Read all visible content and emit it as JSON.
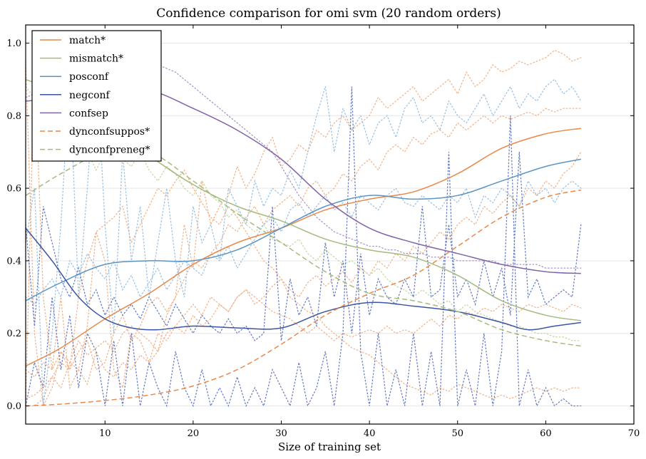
{
  "chart_data": {
    "type": "line",
    "title": "Confidence comparison for omi svm (20 random orders)",
    "xlabel": "Size of training set",
    "ylabel": "",
    "xlim": [
      1,
      70
    ],
    "ylim": [
      -0.05,
      1.05
    ],
    "xticks": [
      10,
      20,
      30,
      40,
      50,
      60,
      70
    ],
    "yticks": [
      0.0,
      0.2,
      0.4,
      0.6,
      0.8,
      1.0
    ],
    "grid": "horizontal",
    "legend_position": "top-left",
    "series": [
      {
        "name": "match*",
        "color": "#e8894a",
        "style": "solid",
        "x": [
          1,
          5,
          10,
          15,
          20,
          25,
          30,
          35,
          40,
          45,
          50,
          55,
          60,
          64
        ],
        "values": [
          0.11,
          0.16,
          0.24,
          0.31,
          0.39,
          0.45,
          0.49,
          0.54,
          0.57,
          0.59,
          0.64,
          0.71,
          0.75,
          0.765
        ]
      },
      {
        "name": "mismatch*",
        "color": "#a5bb7e",
        "style": "solid",
        "x": [
          1,
          5,
          10,
          15,
          20,
          25,
          30,
          35,
          40,
          45,
          50,
          55,
          60,
          64
        ],
        "values": [
          0.9,
          0.86,
          0.78,
          0.69,
          0.61,
          0.55,
          0.51,
          0.46,
          0.43,
          0.41,
          0.36,
          0.29,
          0.25,
          0.235
        ]
      },
      {
        "name": "posconf",
        "color": "#5b95c4",
        "style": "solid",
        "x": [
          1,
          5,
          10,
          15,
          20,
          25,
          30,
          35,
          40,
          45,
          50,
          55,
          60,
          64
        ],
        "values": [
          0.29,
          0.34,
          0.39,
          0.4,
          0.4,
          0.43,
          0.49,
          0.55,
          0.58,
          0.57,
          0.58,
          0.62,
          0.66,
          0.68
        ]
      },
      {
        "name": "negconf",
        "color": "#3b55a2",
        "style": "solid",
        "x": [
          1,
          4,
          7,
          10,
          13,
          16,
          20,
          25,
          30,
          35,
          40,
          45,
          50,
          55,
          58,
          61,
          64
        ],
        "values": [
          0.49,
          0.4,
          0.3,
          0.24,
          0.215,
          0.21,
          0.22,
          0.215,
          0.215,
          0.26,
          0.285,
          0.275,
          0.26,
          0.23,
          0.21,
          0.22,
          0.23
        ]
      },
      {
        "name": "confsep",
        "color": "#8064a8",
        "style": "solid",
        "x": [
          1,
          5,
          10,
          15,
          20,
          25,
          30,
          35,
          40,
          45,
          50,
          55,
          60,
          64
        ],
        "values": [
          0.84,
          0.85,
          0.87,
          0.87,
          0.82,
          0.76,
          0.68,
          0.57,
          0.49,
          0.45,
          0.42,
          0.39,
          0.37,
          0.365
        ]
      },
      {
        "name": "dynconfsuppos*",
        "color": "#e8894a",
        "style": "dashed",
        "x": [
          1,
          5,
          10,
          15,
          20,
          25,
          30,
          35,
          40,
          45,
          50,
          55,
          60,
          64
        ],
        "values": [
          0.0,
          0.005,
          0.015,
          0.03,
          0.055,
          0.1,
          0.17,
          0.25,
          0.31,
          0.36,
          0.44,
          0.52,
          0.575,
          0.595
        ]
      },
      {
        "name": "dynconfpreneg*",
        "color": "#a5bb7e",
        "style": "dashed",
        "x": [
          1,
          5,
          10,
          15,
          20,
          25,
          30,
          35,
          40,
          45,
          50,
          55,
          60,
          64
        ],
        "values": [
          0.58,
          0.64,
          0.7,
          0.7,
          0.62,
          0.53,
          0.45,
          0.37,
          0.31,
          0.29,
          0.26,
          0.21,
          0.18,
          0.165
        ]
      }
    ],
    "background_runs": [
      {
        "color": "#f0b58e",
        "values": [
          0.0,
          0.95,
          0.3,
          0.1,
          0.3,
          0.05,
          0.1,
          0.22,
          0.48,
          0.4,
          0.1,
          0.05,
          0.2,
          0.18,
          0.12,
          0.15,
          0.25,
          0.3,
          0.5,
          0.38,
          0.62,
          0.5,
          0.55,
          0.58,
          0.66,
          0.6,
          0.64,
          0.7,
          0.74,
          0.66,
          0.68,
          0.72,
          0.7,
          0.76,
          0.74,
          0.78,
          0.8,
          0.76,
          0.78,
          0.8,
          0.85,
          0.82,
          0.84,
          0.86,
          0.88,
          0.84,
          0.86,
          0.88,
          0.9,
          0.86,
          0.92,
          0.88,
          0.9,
          0.94,
          0.92,
          0.93,
          0.95,
          0.94,
          0.95,
          0.96,
          0.98,
          0.97,
          0.95,
          0.96
        ]
      },
      {
        "color": "#f0b58e",
        "values": [
          0.02,
          0.03,
          0.05,
          0.08,
          0.12,
          0.1,
          0.15,
          0.18,
          0.1,
          0.12,
          0.2,
          0.25,
          0.18,
          0.22,
          0.28,
          0.3,
          0.26,
          0.3,
          0.35,
          0.4,
          0.38,
          0.42,
          0.45,
          0.5,
          0.48,
          0.52,
          0.55,
          0.5,
          0.54,
          0.56,
          0.58,
          0.55,
          0.6,
          0.62,
          0.58,
          0.6,
          0.64,
          0.62,
          0.66,
          0.68,
          0.65,
          0.7,
          0.72,
          0.7,
          0.74,
          0.72,
          0.75,
          0.76,
          0.74,
          0.78,
          0.76,
          0.78,
          0.8,
          0.78,
          0.8,
          0.79,
          0.8,
          0.81,
          0.8,
          0.82,
          0.81,
          0.82,
          0.82,
          0.82
        ]
      },
      {
        "color": "#f0b58e",
        "values": [
          0.0,
          0.0,
          0.02,
          0.08,
          0.05,
          0.12,
          0.1,
          0.06,
          0.15,
          0.1,
          0.08,
          0.12,
          0.1,
          0.14,
          0.12,
          0.2,
          0.18,
          0.22,
          0.2,
          0.25,
          0.22,
          0.24,
          0.28,
          0.26,
          0.3,
          0.32,
          0.28,
          0.3,
          0.33,
          0.35,
          0.32,
          0.3,
          0.34,
          0.36,
          0.33,
          0.35,
          0.37,
          0.34,
          0.38,
          0.36,
          0.4,
          0.38,
          0.42,
          0.4,
          0.44,
          0.42,
          0.45,
          0.48,
          0.46,
          0.5,
          0.52,
          0.5,
          0.55,
          0.53,
          0.56,
          0.58,
          0.55,
          0.6,
          0.58,
          0.62,
          0.6,
          0.64,
          0.66,
          0.7
        ]
      },
      {
        "color": "#f0b58e",
        "values": [
          0.95,
          0.2,
          0.0,
          0.05,
          0.15,
          0.1,
          0.3,
          0.4,
          0.48,
          0.5,
          0.52,
          0.55,
          0.45,
          0.5,
          0.55,
          0.6,
          0.58,
          0.62,
          0.65,
          0.6,
          0.56,
          0.52,
          0.5,
          0.55,
          0.52,
          0.48,
          0.44,
          0.4,
          0.38,
          0.35,
          0.3,
          0.28,
          0.26,
          0.25,
          0.22,
          0.2,
          0.18,
          0.16,
          0.15,
          0.14,
          0.12,
          0.1,
          0.08,
          0.06,
          0.05,
          0.04,
          0.03,
          0.05,
          0.04,
          0.06,
          0.05,
          0.04,
          0.03,
          0.02,
          0.03,
          0.02,
          0.03,
          0.04,
          0.05,
          0.04,
          0.05,
          0.04,
          0.05,
          0.05
        ]
      },
      {
        "color": "#f0b58e",
        "values": [
          0.1,
          0.08,
          0.12,
          0.1,
          0.15,
          0.12,
          0.18,
          0.14,
          0.16,
          0.18,
          0.15,
          0.2,
          0.22,
          0.2,
          0.18,
          0.15,
          0.2,
          0.22,
          0.25,
          0.28,
          0.25,
          0.3,
          0.28,
          0.26,
          0.3,
          0.32,
          0.3,
          0.28,
          0.26,
          0.25,
          0.24,
          0.22,
          0.2,
          0.22,
          0.2,
          0.18,
          0.2,
          0.19,
          0.2,
          0.21,
          0.2,
          0.22,
          0.2,
          0.21,
          0.2,
          0.22,
          0.24,
          0.22,
          0.25,
          0.24,
          0.26,
          0.25,
          0.27,
          0.26,
          0.28,
          0.27,
          0.26,
          0.28,
          0.27,
          0.28,
          0.27,
          0.26,
          0.28,
          0.27
        ]
      },
      {
        "color": "#c8d8a4",
        "values": [
          0.88,
          0.85,
          0.8,
          0.82,
          0.78,
          0.75,
          0.8,
          0.7,
          0.65,
          0.7,
          0.72,
          0.68,
          0.66,
          0.7,
          0.65,
          0.62,
          0.66,
          0.64,
          0.6,
          0.58,
          0.62,
          0.58,
          0.56,
          0.52,
          0.54,
          0.5,
          0.48,
          0.5,
          0.46,
          0.45,
          0.44,
          0.46,
          0.42,
          0.4,
          0.43,
          0.41,
          0.39,
          0.4,
          0.38,
          0.36,
          0.38,
          0.35,
          0.33,
          0.32,
          0.3,
          0.32,
          0.3,
          0.28,
          0.29,
          0.26,
          0.28,
          0.26,
          0.25,
          0.24,
          0.23,
          0.22,
          0.22,
          0.21,
          0.2,
          0.2,
          0.19,
          0.19,
          0.18,
          0.18
        ]
      },
      {
        "color": "#9fc2e2",
        "values": [
          0.45,
          0.6,
          0.0,
          0.2,
          0.5,
          0.9,
          0.3,
          0.6,
          0.95,
          0.5,
          0.2,
          0.7,
          0.4,
          0.55,
          0.3,
          0.45,
          0.6,
          0.4,
          0.3,
          0.55,
          0.45,
          0.5,
          0.4,
          0.6,
          0.55,
          0.5,
          0.62,
          0.55,
          0.6,
          0.58,
          0.65,
          0.6,
          0.7,
          0.8,
          0.88,
          0.7,
          0.82,
          0.76,
          0.8,
          0.72,
          0.78,
          0.8,
          0.74,
          0.82,
          0.85,
          0.78,
          0.8,
          0.76,
          0.84,
          0.8,
          0.78,
          0.82,
          0.86,
          0.8,
          0.84,
          0.88,
          0.82,
          0.86,
          0.84,
          0.88,
          0.9,
          0.86,
          0.88,
          0.84
        ]
      },
      {
        "color": "#9fc2e2",
        "values": [
          0.3,
          0.28,
          0.32,
          0.35,
          0.3,
          0.4,
          0.36,
          0.42,
          0.38,
          0.35,
          0.4,
          0.32,
          0.36,
          0.3,
          0.34,
          0.38,
          0.32,
          0.36,
          0.4,
          0.38,
          0.36,
          0.42,
          0.4,
          0.44,
          0.38,
          0.42,
          0.46,
          0.5,
          0.52,
          0.48,
          0.54,
          0.56,
          0.52,
          0.55,
          0.58,
          0.54,
          0.56,
          0.52,
          0.58,
          0.56,
          0.54,
          0.58,
          0.6,
          0.56,
          0.55,
          0.58,
          0.56,
          0.54,
          0.58,
          0.56,
          0.6,
          0.52,
          0.58,
          0.56,
          0.6,
          0.58,
          0.55,
          0.62,
          0.58,
          0.6,
          0.56,
          0.6,
          0.62,
          0.6
        ]
      },
      {
        "color": "#6b7fc4",
        "values": [
          0.0,
          0.12,
          0.05,
          0.3,
          0.1,
          0.25,
          0.05,
          0.2,
          0.15,
          0.0,
          0.18,
          0.0,
          0.2,
          0.0,
          0.12,
          0.05,
          0.0,
          0.15,
          0.05,
          0.0,
          0.1,
          0.0,
          0.05,
          0.0,
          0.08,
          0.0,
          0.05,
          0.0,
          0.1,
          0.05,
          0.0,
          0.12,
          0.0,
          0.05,
          0.15,
          0.0,
          0.2,
          0.88,
          0.15,
          0.0,
          0.2,
          0.0,
          0.1,
          0.0,
          0.2,
          0.0,
          0.15,
          0.0,
          0.7,
          0.0,
          0.1,
          0.0,
          0.2,
          0.0,
          0.15,
          0.8,
          0.0,
          0.1,
          0.0,
          0.05,
          0.0,
          0.02,
          0.0,
          0.0
        ]
      },
      {
        "color": "#6b7fc4",
        "values": [
          0.5,
          0.22,
          0.55,
          0.45,
          0.35,
          0.3,
          0.38,
          0.28,
          0.32,
          0.25,
          0.3,
          0.25,
          0.28,
          0.24,
          0.3,
          0.26,
          0.22,
          0.28,
          0.24,
          0.2,
          0.25,
          0.22,
          0.2,
          0.24,
          0.2,
          0.22,
          0.18,
          0.2,
          0.55,
          0.18,
          0.35,
          0.25,
          0.3,
          0.22,
          0.45,
          0.3,
          0.4,
          0.2,
          0.42,
          0.25,
          0.35,
          0.3,
          0.28,
          0.35,
          0.3,
          0.55,
          0.3,
          0.32,
          0.5,
          0.3,
          0.35,
          0.28,
          0.4,
          0.3,
          0.38,
          0.25,
          0.7,
          0.3,
          0.35,
          0.28,
          0.3,
          0.32,
          0.3,
          0.5
        ]
      },
      {
        "color": "#aa97c9",
        "values": [
          0.85,
          0.86,
          0.88,
          0.9,
          0.92,
          0.94,
          0.96,
          0.97,
          0.98,
          0.99,
          0.99,
          0.98,
          0.97,
          0.96,
          0.95,
          0.94,
          0.93,
          0.92,
          0.9,
          0.88,
          0.86,
          0.84,
          0.82,
          0.8,
          0.78,
          0.76,
          0.74,
          0.72,
          0.7,
          0.66,
          0.62,
          0.58,
          0.55,
          0.52,
          0.5,
          0.48,
          0.47,
          0.46,
          0.45,
          0.44,
          0.44,
          0.43,
          0.43,
          0.42,
          0.42,
          0.42,
          0.41,
          0.41,
          0.41,
          0.4,
          0.4,
          0.4,
          0.4,
          0.4,
          0.39,
          0.39,
          0.39,
          0.39,
          0.39,
          0.38,
          0.38,
          0.38,
          0.38,
          0.38
        ]
      }
    ]
  }
}
